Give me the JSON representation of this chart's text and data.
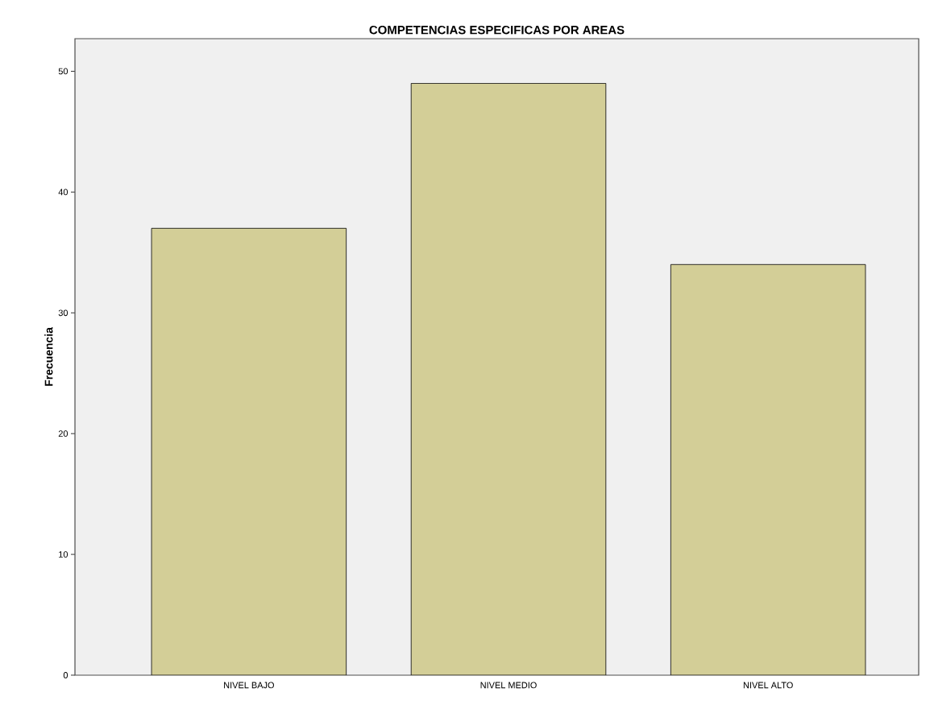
{
  "chart_data": {
    "type": "bar",
    "title": "COMPETENCIAS ESPECIFICAS POR AREAS",
    "ylabel": "Frecuencia",
    "categories": [
      "NIVEL BAJO",
      "NIVEL MEDIO",
      "NIVEL ALTO"
    ],
    "values": [
      37,
      49,
      34
    ],
    "color": "#d3ce97",
    "ylim": [
      0,
      52.7
    ],
    "yticks": [
      0,
      10,
      20,
      30,
      40,
      50
    ]
  }
}
